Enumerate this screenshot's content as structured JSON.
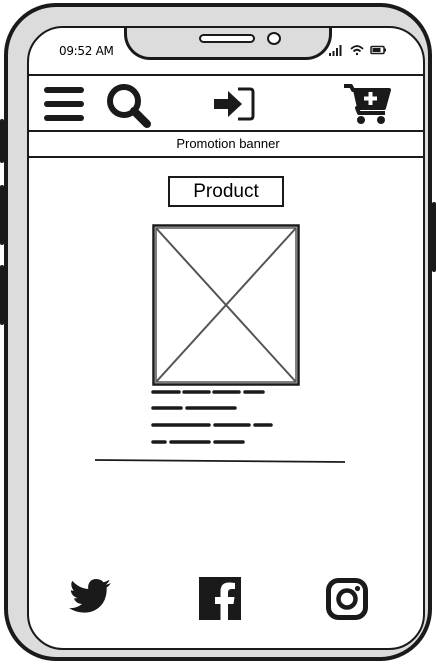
{
  "status_bar": {
    "time": "09:52 AM"
  },
  "promo": {
    "text": "Promotion banner"
  },
  "product": {
    "title": "Product"
  },
  "colors": {
    "ink": "#1a1a1a",
    "frame": "#dcdcdc",
    "screen": "#ffffff",
    "placeholder_line": "#555555"
  },
  "icons": {
    "nav": [
      "menu-icon",
      "search-icon",
      "login-icon",
      "add-to-cart-icon"
    ],
    "social": [
      "twitter-icon",
      "facebook-icon",
      "instagram-icon"
    ]
  }
}
